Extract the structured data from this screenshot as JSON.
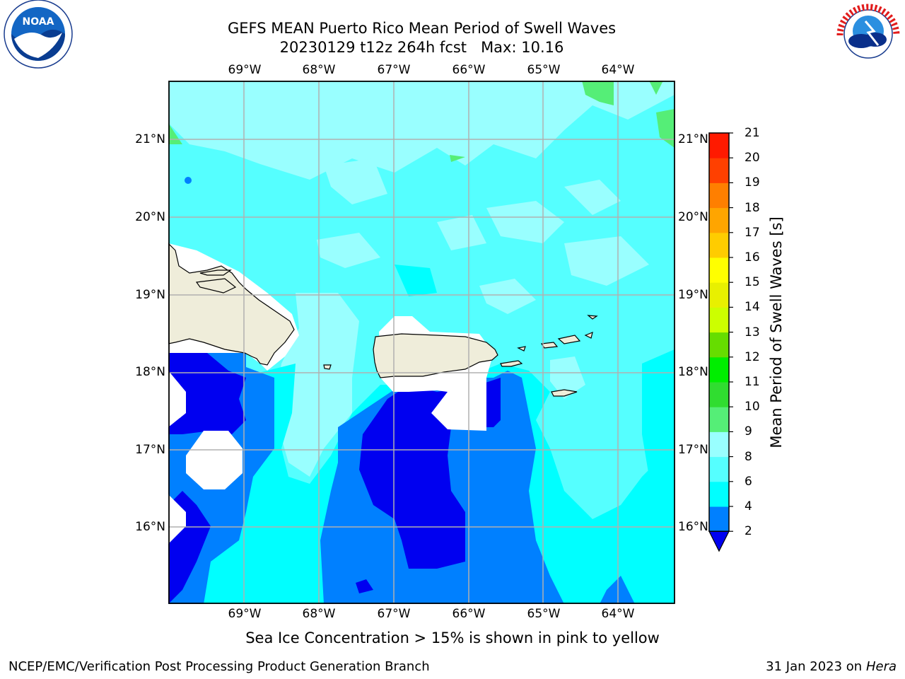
{
  "title": {
    "line1": "GEFS MEAN Puerto Rico Mean Period of Swell Waves",
    "line2": "20230129 t12z 264h fcst   Max: 10.16"
  },
  "logos": {
    "left": {
      "icon": "noaa-logo",
      "text": "NOAA"
    },
    "right": {
      "icon": "nws-logo",
      "text": "NATIONAL WEATHER SERVICE"
    }
  },
  "map": {
    "lon_labels": [
      "69°W",
      "68°W",
      "67°W",
      "66°W",
      "65°W",
      "64°W"
    ],
    "lat_labels": [
      "21°N",
      "20°N",
      "19°N",
      "18°N",
      "17°N",
      "16°N"
    ],
    "extent": {
      "lon_min": -70,
      "lon_max": -63.25,
      "lat_min": 15,
      "lat_max": 21.75
    },
    "land_color": "#efedda",
    "gridline_color": "#b0b0b0"
  },
  "colorbar": {
    "label": "Mean Period of Swell Waves [s]",
    "ticks": [
      "2",
      "4",
      "6",
      "8",
      "9",
      "10",
      "11",
      "12",
      "13",
      "14",
      "15",
      "16",
      "17",
      "18",
      "19",
      "20",
      "21"
    ],
    "colors": [
      "#0000f0",
      "#0080ff",
      "#00ffff",
      "#55ffff",
      "#99ffff",
      "#55ee77",
      "#30dd30",
      "#00ee00",
      "#66dd00",
      "#ccff00",
      "#e8f000",
      "#ffff00",
      "#ffcc00",
      "#ffa500",
      "#ff7f00",
      "#ff4000",
      "#ff1a00",
      "#ff0000"
    ]
  },
  "caption": "Sea Ice Concentration > 15% is shown in pink to yellow",
  "footer": {
    "left": "NCEP/EMC/Verification Post Processing Product Generation Branch",
    "date": "31 Jan 2023 on",
    "machine": "Hera"
  }
}
